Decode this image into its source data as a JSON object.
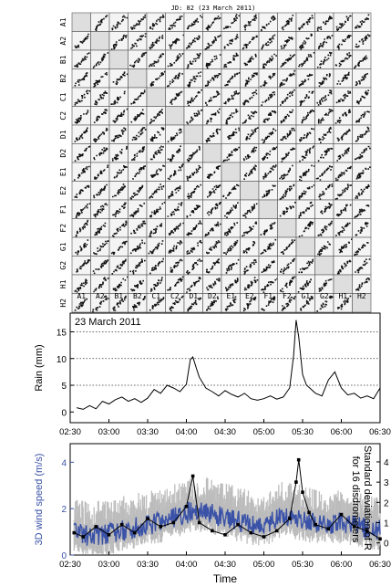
{
  "chart_data": [
    {
      "type": "scatter-matrix",
      "title": "JD: 82 (23 March 2011)",
      "labels": [
        "A1",
        "A2",
        "B1",
        "B2",
        "C1",
        "C2",
        "D1",
        "D2",
        "E1",
        "E2",
        "F1",
        "F2",
        "G1",
        "G2",
        "H1",
        "H2"
      ]
    },
    {
      "type": "line",
      "annotation": "23 March 2011",
      "ylabel": "Rain (mm)",
      "ylim": [
        -2,
        18.5
      ],
      "yticks": [
        "0",
        "5",
        "10",
        "15"
      ],
      "xlim": [
        "02:30",
        "06:30"
      ],
      "xticks": [
        "02:30",
        "03:00",
        "03:30",
        "04:00",
        "04:30",
        "05:00",
        "05:30",
        "06:00",
        "06:30"
      ],
      "grid_y": [
        5,
        10,
        15
      ],
      "series": [
        {
          "x": [
            "02:35",
            "02:40",
            "02:45",
            "02:50",
            "02:55",
            "03:00",
            "03:05",
            "03:10",
            "03:15",
            "03:20",
            "03:25",
            "03:30",
            "03:35",
            "03:40",
            "03:45",
            "03:50",
            "03:55",
            "04:00",
            "04:03",
            "04:05",
            "04:08",
            "04:10",
            "04:15",
            "04:20",
            "04:25",
            "04:30",
            "04:35",
            "04:40",
            "04:45",
            "04:50",
            "04:55",
            "05:00",
            "05:05",
            "05:10",
            "05:15",
            "05:20",
            "05:23",
            "05:25",
            "05:27",
            "05:30",
            "05:33",
            "05:35",
            "05:40",
            "05:45",
            "05:50",
            "05:55",
            "06:00",
            "06:05",
            "06:10",
            "06:15",
            "06:20",
            "06:25",
            "06:30"
          ],
          "y": [
            0.8,
            0.5,
            1.2,
            0.6,
            2.0,
            1.5,
            2.3,
            2.8,
            2.0,
            2.5,
            1.8,
            2.6,
            4.2,
            3.5,
            5.0,
            4.5,
            3.8,
            5.2,
            9.8,
            10.3,
            8.0,
            6.5,
            4.5,
            3.8,
            3.0,
            4.0,
            3.3,
            2.8,
            3.5,
            2.5,
            2.2,
            2.5,
            3.0,
            2.4,
            2.8,
            4.5,
            10.5,
            17.2,
            14.0,
            7.0,
            5.0,
            4.6,
            3.5,
            3.0,
            6.0,
            7.5,
            4.5,
            3.2,
            3.5,
            2.6,
            3.0,
            2.5,
            4.5
          ]
        }
      ]
    },
    {
      "type": "line",
      "xlabel": "Time",
      "ylabel_left": "3D wind speed (m/s)",
      "ylabel_right": "Standard deviation of R for 16 disdrometers",
      "ylim_left": [
        0,
        4.8
      ],
      "yticks_left": [
        "0",
        "2",
        "4"
      ],
      "ylim_right": [
        -0.6,
        4.9
      ],
      "yticks_right": [
        "0",
        "1",
        "2",
        "3",
        "4"
      ],
      "xlim": [
        "02:30",
        "06:30"
      ],
      "xticks": [
        "02:30",
        "03:00",
        "03:30",
        "04:00",
        "04:30",
        "05:00",
        "05:30",
        "06:00",
        "06:30"
      ],
      "series": [
        {
          "name": "",
          "color": "#3a52a8",
          "x": [
            "02:33",
            "02:45",
            "03:00",
            "03:15",
            "03:30",
            "03:45",
            "04:00",
            "04:15",
            "04:30",
            "04:45",
            "05:00",
            "05:15",
            "05:30",
            "05:45",
            "06:00",
            "06:15",
            "06:30"
          ],
          "y": [
            1.0,
            0.8,
            0.9,
            1.1,
            1.3,
            1.5,
            1.8,
            1.9,
            1.6,
            1.4,
            1.2,
            1.7,
            1.5,
            1.3,
            1.4,
            1.2,
            1.1
          ]
        },
        {
          "name": "",
          "color": "#000000",
          "marker": "square",
          "x": [
            "02:33",
            "02:40",
            "02:50",
            "03:00",
            "03:10",
            "03:20",
            "03:30",
            "03:40",
            "03:50",
            "04:00",
            "04:05",
            "04:10",
            "04:20",
            "04:30",
            "04:40",
            "04:50",
            "05:00",
            "05:10",
            "05:20",
            "05:25",
            "05:27",
            "05:30",
            "05:35",
            "05:40",
            "05:50",
            "06:00",
            "06:10",
            "06:20",
            "06:30"
          ],
          "y": [
            0.5,
            0.3,
            0.8,
            0.4,
            0.9,
            0.5,
            1.2,
            0.8,
            1.0,
            1.8,
            3.3,
            1.0,
            0.6,
            0.4,
            0.9,
            0.5,
            0.3,
            0.6,
            1.2,
            3.0,
            4.1,
            2.5,
            1.5,
            0.9,
            0.7,
            1.4,
            0.8,
            0.6,
            0.2
          ]
        }
      ]
    }
  ]
}
